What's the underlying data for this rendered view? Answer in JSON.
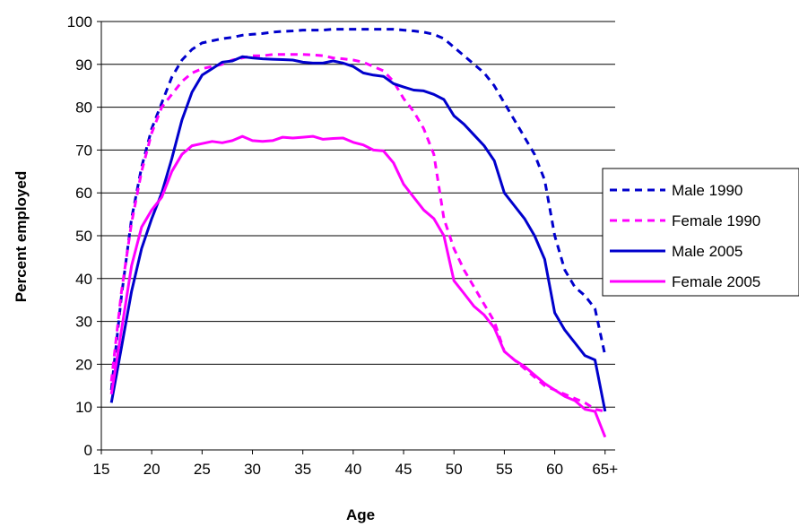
{
  "chart_data": {
    "type": "line",
    "title": "",
    "xlabel": "Age",
    "ylabel": "Percent employed",
    "ylim": [
      0,
      100
    ],
    "xlim": [
      15,
      66
    ],
    "x_ticks": [
      {
        "value": 15,
        "label": "15"
      },
      {
        "value": 20,
        "label": "20"
      },
      {
        "value": 25,
        "label": "25"
      },
      {
        "value": 30,
        "label": "30"
      },
      {
        "value": 35,
        "label": "35"
      },
      {
        "value": 40,
        "label": "40"
      },
      {
        "value": 45,
        "label": "45"
      },
      {
        "value": 50,
        "label": "50"
      },
      {
        "value": 55,
        "label": "55"
      },
      {
        "value": 60,
        "label": "60"
      },
      {
        "value": 65,
        "label": "65+"
      }
    ],
    "y_ticks": [
      0,
      10,
      20,
      30,
      40,
      50,
      60,
      70,
      80,
      90,
      100
    ],
    "grid": "horizontal",
    "legend_position": "right",
    "x": [
      16,
      17,
      18,
      19,
      20,
      21,
      22,
      23,
      24,
      25,
      26,
      27,
      28,
      29,
      30,
      31,
      32,
      33,
      34,
      35,
      36,
      37,
      38,
      39,
      40,
      41,
      42,
      43,
      44,
      45,
      46,
      47,
      48,
      49,
      50,
      51,
      52,
      53,
      54,
      55,
      56,
      57,
      58,
      59,
      60,
      61,
      62,
      63,
      64,
      65
    ],
    "series": [
      {
        "name": "Male 1990",
        "color": "#0000CC",
        "dash": "dashed",
        "values": [
          14,
          36,
          54,
          66,
          75,
          81,
          87,
          91,
          93.5,
          95,
          95.5,
          96,
          96.3,
          96.8,
          97,
          97.2,
          97.5,
          97.7,
          97.8,
          98,
          98,
          98,
          98.2,
          98.2,
          98.2,
          98.2,
          98.2,
          98.2,
          98.2,
          98,
          97.8,
          97.5,
          97,
          96,
          94,
          92,
          90,
          88,
          85,
          81,
          77,
          73,
          69,
          63,
          50,
          42,
          38,
          36,
          33,
          22
        ]
      },
      {
        "name": "Female 1990",
        "color": "#FF00FF",
        "dash": "dashed",
        "values": [
          16,
          37,
          53,
          65,
          74,
          80,
          83,
          86,
          88,
          89,
          89.5,
          90,
          91,
          91.5,
          92,
          92,
          92.3,
          92.3,
          92.3,
          92.3,
          92.2,
          92,
          91.5,
          91.3,
          91,
          90.5,
          89.5,
          88.5,
          86,
          82,
          79,
          75,
          69,
          54,
          47,
          42,
          38,
          34,
          30,
          23,
          21,
          19,
          17,
          15,
          14,
          13,
          12,
          11,
          9.5,
          9
        ]
      },
      {
        "name": "Male 2005",
        "color": "#0000CC",
        "dash": "solid",
        "values": [
          11,
          24,
          37,
          47,
          54,
          60,
          68,
          77,
          83.5,
          87.5,
          89,
          90.5,
          90.8,
          91.8,
          91.5,
          91.3,
          91.2,
          91.1,
          91,
          90.5,
          90.3,
          90.3,
          90.8,
          90.3,
          89.5,
          88,
          87.5,
          87.2,
          85.5,
          84.7,
          84,
          83.8,
          83,
          81.8,
          78,
          76,
          73.5,
          71,
          67.5,
          60,
          57,
          54,
          50,
          44.5,
          32,
          28,
          25,
          22,
          21,
          9
        ]
      },
      {
        "name": "Female 2005",
        "color": "#FF00FF",
        "dash": "solid",
        "values": [
          13,
          28,
          43,
          52,
          56,
          59,
          65,
          69,
          71,
          71.5,
          72,
          71.7,
          72.2,
          73.2,
          72.2,
          72,
          72.2,
          73,
          72.8,
          73,
          73.2,
          72.5,
          72.7,
          72.8,
          71.8,
          71.2,
          70,
          69.8,
          67,
          62,
          59,
          56,
          54,
          50,
          39.5,
          36.5,
          33.5,
          31.5,
          28.5,
          23,
          21,
          19.5,
          17.5,
          15.5,
          14,
          12.5,
          11.5,
          9.5,
          9,
          3
        ]
      }
    ]
  }
}
